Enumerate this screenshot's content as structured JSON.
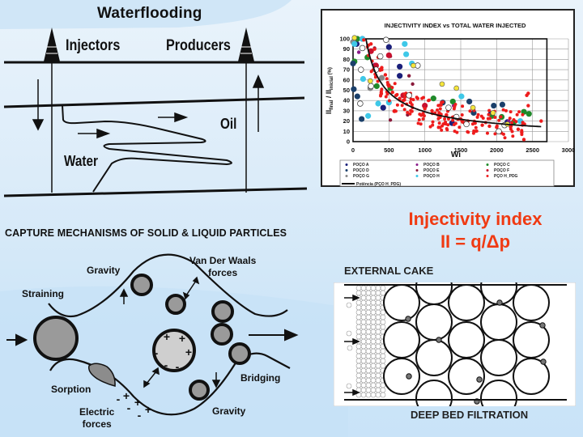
{
  "waterflooding": {
    "title": "Waterflooding",
    "labels": {
      "injectors": "Injectors",
      "producers": "Producers",
      "oil": "Oil",
      "water": "Water"
    },
    "icons": [
      "oil-derrick-icon",
      "oil-derrick-icon"
    ]
  },
  "chart": {
    "title": "INJECTIVITY INDEX  vs TOTAL WATER INJECTED",
    "ylabel_main": "II",
    "ylabel_sub1": "final",
    "ylabel_sep": " / II",
    "ylabel_sub2": "inicial",
    "ylabel_unit": " (%)",
    "xlabel": "Wi",
    "yticks": [
      "0",
      "10",
      "20",
      "30",
      "40",
      "50",
      "60",
      "70",
      "80",
      "90",
      "100"
    ],
    "xticks": [
      "0",
      "500",
      "1000",
      "1500",
      "2000",
      "2500",
      "3000"
    ],
    "legend": [
      {
        "label": "POÇO A",
        "color": "#1a1f7a"
      },
      {
        "label": "POÇO B",
        "color": "#8a1a8a"
      },
      {
        "label": "POÇO C",
        "color": "#1f8a2a"
      },
      {
        "label": "POÇO D",
        "color": "#1a3f6a"
      },
      {
        "label": "POÇO E",
        "color": "#8a1a3a"
      },
      {
        "label": "POÇO F",
        "color": "#c8102e"
      },
      {
        "label": "POÇO G",
        "color": "#888888"
      },
      {
        "label": "POÇO H",
        "color": "#3ec8e8"
      },
      {
        "label": "PÇO H_PDG",
        "color": "#ee1c1c"
      }
    ],
    "trend_label": "Potência (PÇO H_PDG)"
  },
  "chart_data": {
    "type": "scatter",
    "title": "INJECTIVITY INDEX  vs TOTAL WATER INJECTED",
    "xlabel": "Wi",
    "ylabel": "II final / II inicial (%)",
    "xlim": [
      0,
      3000
    ],
    "ylim": [
      0,
      100
    ],
    "grid": true,
    "legend_position": "bottom",
    "series": [
      {
        "name": "POÇO A",
        "points": [
          [
            50,
            95
          ],
          [
            130,
            100
          ],
          [
            500,
            92
          ],
          [
            650,
            73
          ],
          [
            650,
            64
          ],
          [
            420,
            33
          ],
          [
            1380,
            18
          ],
          [
            1920,
            27
          ],
          [
            2150,
            19
          ]
        ]
      },
      {
        "name": "POÇO B",
        "points": [
          [
            80,
            87
          ],
          [
            300,
            75
          ],
          [
            1400,
            35
          ],
          [
            2170,
            20
          ]
        ]
      },
      {
        "name": "POÇO C",
        "points": [
          [
            60,
            100
          ],
          [
            20,
            78
          ],
          [
            200,
            82
          ],
          [
            330,
            54
          ],
          [
            520,
            52
          ],
          [
            1120,
            42
          ],
          [
            1390,
            39
          ],
          [
            1940,
            25
          ],
          [
            2070,
            24
          ],
          [
            2240,
            19
          ],
          [
            2380,
            29
          ],
          [
            2450,
            27
          ]
        ]
      },
      {
        "name": "POÇO D",
        "points": [
          [
            0,
            76
          ],
          [
            10,
            51
          ],
          [
            60,
            44
          ],
          [
            120,
            22
          ],
          [
            1250,
            38
          ],
          [
            1620,
            39
          ],
          [
            1680,
            28
          ],
          [
            1960,
            35
          ],
          [
            2080,
            36
          ]
        ]
      },
      {
        "name": "POÇO E",
        "points": [
          [
            300,
            91
          ],
          [
            520,
            83
          ],
          [
            780,
            64
          ],
          [
            830,
            56
          ],
          [
            760,
            26
          ],
          [
            520,
            21
          ]
        ]
      },
      {
        "name": "POÇO F",
        "points": [
          [
            250,
            88
          ],
          [
            320,
            74
          ],
          [
            500,
            84
          ],
          [
            700,
            45
          ],
          [
            1000,
            35
          ]
        ]
      },
      {
        "name": "POÇO G",
        "points": [
          [
            0,
            97
          ],
          [
            240,
            52
          ],
          [
            400,
            62
          ]
        ]
      },
      {
        "name": "POÇO H",
        "points": [
          [
            20,
            95
          ],
          [
            130,
            100
          ],
          [
            720,
            95
          ],
          [
            740,
            85
          ],
          [
            820,
            76
          ],
          [
            140,
            61
          ],
          [
            350,
            37
          ],
          [
            500,
            38
          ],
          [
            210,
            25
          ],
          [
            1510,
            44
          ],
          [
            2330,
            20
          ]
        ]
      },
      {
        "name": "PÇO H_PDG",
        "points": [
          [
            150,
            99
          ],
          [
            250,
            95
          ],
          [
            300,
            90
          ],
          [
            350,
            82
          ],
          [
            400,
            72
          ],
          [
            450,
            65
          ],
          [
            500,
            55
          ],
          [
            550,
            48
          ],
          [
            600,
            45
          ],
          [
            650,
            42
          ],
          [
            700,
            40
          ],
          [
            800,
            38
          ],
          [
            900,
            42
          ],
          [
            1000,
            32
          ],
          [
            1100,
            30
          ],
          [
            1200,
            28
          ],
          [
            1300,
            26
          ],
          [
            1400,
            24
          ],
          [
            1500,
            22
          ],
          [
            1600,
            20
          ],
          [
            1700,
            18
          ],
          [
            1800,
            16
          ],
          [
            1900,
            15
          ],
          [
            2000,
            14
          ],
          [
            2100,
            17
          ],
          [
            2200,
            15
          ],
          [
            2300,
            12
          ],
          [
            2350,
            9
          ],
          [
            2380,
            2
          ],
          [
            2420,
            45
          ],
          [
            2440,
            47
          ],
          [
            2440,
            35
          ],
          [
            2620,
            20
          ]
        ]
      },
      {
        "name": "Potência (PÇO H_PDG)",
        "type": "line",
        "points": [
          [
            180,
            100
          ],
          [
            300,
            75
          ],
          [
            500,
            50
          ],
          [
            800,
            36
          ],
          [
            1000,
            31
          ],
          [
            1500,
            22
          ],
          [
            2000,
            17
          ],
          [
            2500,
            15
          ],
          [
            2630,
            14
          ]
        ]
      }
    ],
    "open_markers": [
      [
        110,
        70
      ],
      [
        130,
        91
      ],
      [
        250,
        54
      ],
      [
        460,
        99
      ],
      [
        380,
        83
      ],
      [
        320,
        70
      ],
      [
        100,
        37
      ],
      [
        900,
        74
      ],
      [
        780,
        45
      ],
      [
        1330,
        33
      ],
      [
        1440,
        24
      ],
      [
        1580,
        17
      ],
      [
        2030,
        10
      ],
      [
        2110,
        16
      ]
    ],
    "yellow_markers": [
      [
        20,
        101
      ],
      [
        240,
        59
      ],
      [
        840,
        74
      ],
      [
        1240,
        56
      ],
      [
        1440,
        52
      ],
      [
        1670,
        33
      ],
      [
        1950,
        28
      ],
      [
        2150,
        17
      ]
    ]
  },
  "capture": {
    "title": "CAPTURE MECHANISMS OF SOLID & LIQUID PARTICLES",
    "labels": {
      "gravity_top": "Gravity",
      "van_der_waals_1": "Van Der Waals",
      "van_der_waals_2": "forces",
      "straining": "Straining",
      "bridging": "Bridging",
      "sorption": "Sorption",
      "electric_1": "Electric",
      "electric_2": "forces",
      "gravity_bottom": "Gravity"
    },
    "charges": {
      "plus": "+",
      "minus": "-"
    }
  },
  "injectivity": {
    "line1": "Injectivity index",
    "line2": "II = q/Δp"
  },
  "filtration": {
    "external_cake": "EXTERNAL CAKE",
    "deep_bed": "DEEP BED FILTRATION"
  }
}
